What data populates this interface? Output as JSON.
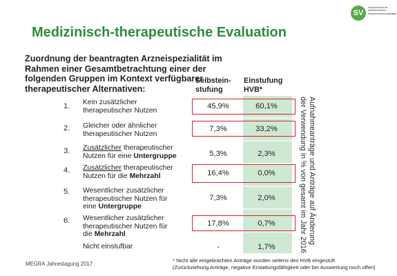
{
  "logo": {
    "mark": "SV",
    "text": "Hauptverband der österreichischen Sozialversicherungsträger"
  },
  "title": "Medizinisch-therapeutische Evaluation",
  "subtitle": "Zuordnung der beantragten Arzneispezialität im Rahmen einer Gesamtbetrachtung einer der folgenden Gruppen im Kontext verfügbarer therapeutischer Alternativen:",
  "columns": {
    "self": "Selbstein-\nstufung",
    "hvb": "Einstufung\nHVB*"
  },
  "rows": [
    {
      "num": "1.",
      "line1": "Kein zusätzlicher",
      "line2": "therapeutischer Nutzen",
      "line3": "",
      "self": "45,9%",
      "hvb": "60,1%"
    },
    {
      "num": "2.",
      "line1": "Gleicher oder ähnlicher",
      "line2": "therapeutischer Nutzen",
      "line3": "",
      "self": "7,3%",
      "hvb": "33,2%"
    },
    {
      "num": "3.",
      "line1": "Zusätzlicher",
      "line1_rest": " therapeutischer",
      "line2": "Nutzen für eine ",
      "line2_bold": "Untergruppe",
      "self": "5,3%",
      "hvb": "2,3%"
    },
    {
      "num": "4.",
      "line1": "Zusätzlicher",
      "line1_rest": " therapeutischer",
      "line2": "Nutzen für die ",
      "line2_bold": "Mehrzahl",
      "self": "16,4%",
      "hvb": "0,0%"
    },
    {
      "num": "5.",
      "line1": "Wesentlicher zusätzlicher",
      "line2": "therapeutischer Nutzen für",
      "line3": "eine ",
      "line3_bold": "Untergruppe",
      "self": "7,3%",
      "hvb": "2,0%"
    },
    {
      "num": "6.",
      "line1": "Wesentlicher zusätzlicher",
      "line2": "therapeutischer Nutzen für",
      "line3": "die ",
      "line3_bold": "Mehrzahl",
      "self": "17,8%",
      "hvb": "0,7%"
    },
    {
      "num": "",
      "line1": "Nicht einstufbar",
      "self": "-",
      "hvb": "1,7%"
    }
  ],
  "side_note": "Aufnahmeanträge und Anträge auf Änderung der Verwendung in % von gesamt im Jahr 2016",
  "footer_left": "MEGRA Jahrestagung 2017",
  "footnote_line1": "* Nicht alle eingebrachten Anträge wurden seitens des HVB eingestuft",
  "footnote_line2": "(Zurückziehung Anträge, negative Erstattungsfähigkeit oder bei Auswertung noch offen)",
  "highlight_color": "#d4222a",
  "title_color": "#2e8b3e",
  "hvb_column_color": "#cfe8d3"
}
